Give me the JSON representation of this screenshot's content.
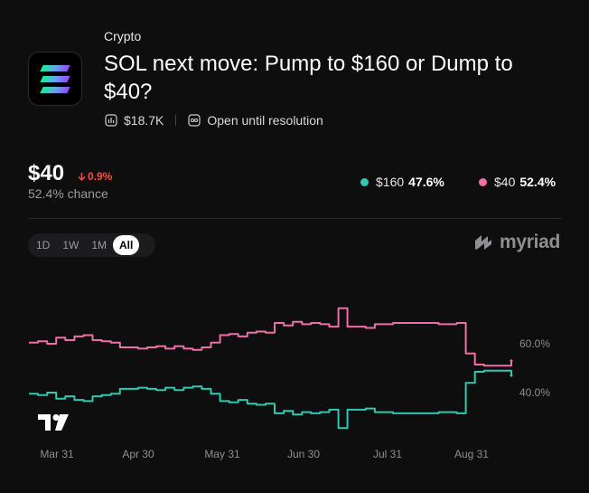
{
  "header": {
    "category": "Crypto",
    "title": "SOL next move: Pump to $160 or Dump to $40?",
    "volume": "$18.7K",
    "status": "Open until resolution"
  },
  "price": {
    "value": "$40",
    "change": "0.9%",
    "change_direction": "down",
    "chance": "52.4% chance"
  },
  "legend": [
    {
      "label": "$160",
      "pct": "47.6%",
      "color": "#2ec9b0"
    },
    {
      "label": "$40",
      "pct": "52.4%",
      "color": "#ee6fa6"
    }
  ],
  "tabs": [
    "1D",
    "1W",
    "1M",
    "All"
  ],
  "active_tab": "All",
  "brand": "myriad",
  "chart_data": {
    "type": "line",
    "x_ticks": [
      "Mar 31",
      "Apr 30",
      "May 31",
      "Jun 30",
      "Jul 31",
      "Aug 31"
    ],
    "y_ticks": [
      "60.0%",
      "40.0%"
    ],
    "ylim": [
      25,
      90
    ],
    "x_points": 54,
    "series": [
      {
        "name": "$40",
        "color": "#ee6fa6",
        "values": [
          60.5,
          61,
          60,
          62.5,
          61.5,
          63,
          63.5,
          61.5,
          61,
          60.5,
          58.5,
          58.5,
          58,
          58.5,
          59,
          58,
          59,
          58,
          57.5,
          58.5,
          60.5,
          63.5,
          64,
          63,
          64.5,
          65,
          64.5,
          68.5,
          67.5,
          69,
          68,
          68.5,
          68,
          67,
          74.5,
          67,
          67,
          66.5,
          68,
          68,
          68.5,
          68.5,
          68.5,
          68.5,
          68.5,
          68,
          68,
          68.5,
          56,
          51.5,
          51,
          51,
          51,
          53
        ]
      },
      {
        "name": "$160",
        "color": "#2ec9b0",
        "values": [
          39.5,
          39,
          40,
          37.5,
          38.5,
          37,
          36.5,
          38.5,
          39,
          39.5,
          41.5,
          41.5,
          42,
          41.5,
          41,
          42,
          41,
          42,
          42.5,
          41.5,
          39.5,
          36.5,
          36,
          37,
          35.5,
          35,
          35.5,
          31.5,
          32.5,
          31,
          32,
          31.5,
          32,
          33,
          25.5,
          33,
          33,
          33.5,
          32,
          32,
          31.5,
          31.5,
          31.5,
          31.5,
          31.5,
          32,
          32,
          31.5,
          44,
          48.5,
          49,
          49,
          49,
          47
        ]
      }
    ]
  }
}
